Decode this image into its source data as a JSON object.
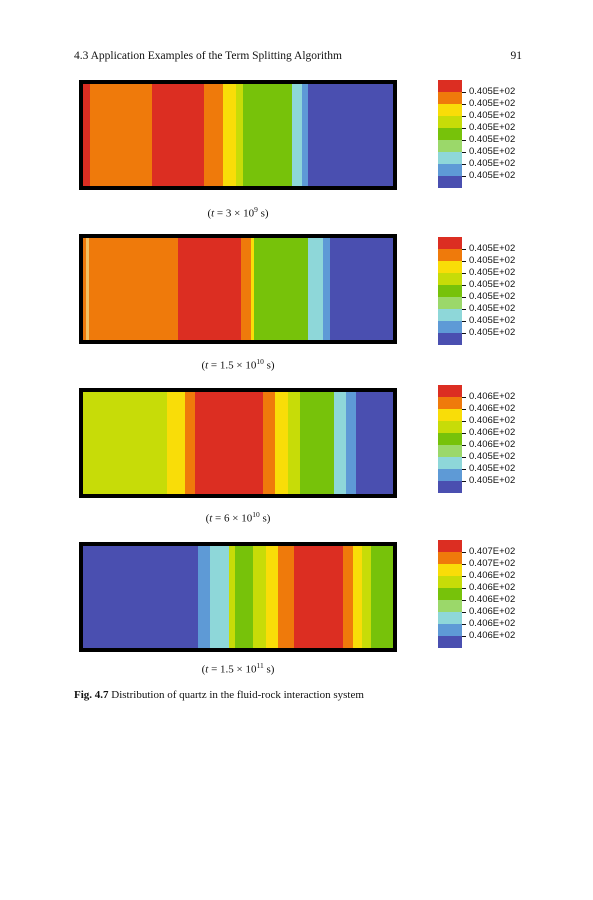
{
  "header": {
    "section": "4.3   Application Examples of the Term Splitting Algorithm",
    "page_number": "91"
  },
  "palette": {
    "red": "#dc2e22",
    "orange": "#ef7a0b",
    "yellow": "#f9dd08",
    "yellowgreen": "#c7dc08",
    "green": "#77c20a",
    "lightgreen": "#9bd86a",
    "cyan": "#8ed7d9",
    "lightblue": "#5e9ad6",
    "blue": "#4a4fb0",
    "highlight": "#f5c060"
  },
  "panels": [
    {
      "caption": {
        "pre": "(",
        "t": "t",
        "mid": " = 3 × 10",
        "exp": "9",
        "post": " s)",
        "unit": "s"
      },
      "bands": [
        {
          "color": "red",
          "w": 2
        },
        {
          "color": "orange",
          "w": 19
        },
        {
          "color": "red",
          "w": 16
        },
        {
          "color": "orange",
          "w": 6
        },
        {
          "color": "yellow",
          "w": 4
        },
        {
          "color": "yellowgreen",
          "w": 2
        },
        {
          "color": "green",
          "w": 15
        },
        {
          "color": "cyan",
          "w": 3
        },
        {
          "color": "lightblue",
          "w": 2
        },
        {
          "color": "blue",
          "w": 26
        }
      ],
      "colorbar_labels": [
        "0.405E+02",
        "0.405E+02",
        "0.405E+02",
        "0.405E+02",
        "0.405E+02",
        "0.405E+02",
        "0.405E+02",
        "0.405E+02"
      ]
    },
    {
      "caption": {
        "pre": "(",
        "t": "t",
        "mid": " = 1.5 × 10",
        "exp": "10",
        "post": " s)",
        "unit": "s"
      },
      "bands": [
        {
          "color": "orange",
          "w": 1
        },
        {
          "color": "highlight",
          "w": 1
        },
        {
          "color": "orange",
          "w": 28
        },
        {
          "color": "red",
          "w": 20
        },
        {
          "color": "orange",
          "w": 3
        },
        {
          "color": "yellow",
          "w": 1
        },
        {
          "color": "green",
          "w": 17
        },
        {
          "color": "cyan",
          "w": 5
        },
        {
          "color": "lightblue",
          "w": 2
        },
        {
          "color": "blue",
          "w": 20
        }
      ],
      "colorbar_labels": [
        "0.405E+02",
        "0.405E+02",
        "0.405E+02",
        "0.405E+02",
        "0.405E+02",
        "0.405E+02",
        "0.405E+02",
        "0.405E+02"
      ]
    },
    {
      "caption": {
        "pre": "(",
        "t": "t",
        "mid": " = 6 × 10",
        "exp": "10",
        "post": " s)",
        "unit": "s"
      },
      "bands": [
        {
          "color": "yellowgreen",
          "w": 27
        },
        {
          "color": "yellow",
          "w": 6
        },
        {
          "color": "orange",
          "w": 3
        },
        {
          "color": "red",
          "w": 22
        },
        {
          "color": "orange",
          "w": 4
        },
        {
          "color": "yellow",
          "w": 4
        },
        {
          "color": "yellowgreen",
          "w": 4
        },
        {
          "color": "green",
          "w": 11
        },
        {
          "color": "cyan",
          "w": 4
        },
        {
          "color": "lightblue",
          "w": 3
        },
        {
          "color": "blue",
          "w": 12
        }
      ],
      "colorbar_labels": [
        "0.406E+02",
        "0.406E+02",
        "0.406E+02",
        "0.406E+02",
        "0.406E+02",
        "0.405E+02",
        "0.405E+02",
        "0.405E+02"
      ]
    },
    {
      "caption": {
        "pre": "(",
        "t": "t",
        "mid": " = 1.5 × 10",
        "exp": "11",
        "post": " s)",
        "unit": "s"
      },
      "bands": [
        {
          "color": "blue",
          "w": 37
        },
        {
          "color": "lightblue",
          "w": 4
        },
        {
          "color": "cyan",
          "w": 6
        },
        {
          "color": "yellowgreen",
          "w": 2
        },
        {
          "color": "green",
          "w": 6
        },
        {
          "color": "yellowgreen",
          "w": 4
        },
        {
          "color": "yellow",
          "w": 4
        },
        {
          "color": "orange",
          "w": 5
        },
        {
          "color": "red",
          "w": 16
        },
        {
          "color": "orange",
          "w": 3
        },
        {
          "color": "yellow",
          "w": 3
        },
        {
          "color": "yellowgreen",
          "w": 3
        },
        {
          "color": "green",
          "w": 7
        }
      ],
      "colorbar_labels": [
        "0.407E+02",
        "0.407E+02",
        "0.406E+02",
        "0.406E+02",
        "0.406E+02",
        "0.406E+02",
        "0.406E+02",
        "0.406E+02"
      ]
    }
  ],
  "colorbar_swatches": [
    "red",
    "orange",
    "yellow",
    "yellowgreen",
    "green",
    "lightgreen",
    "cyan",
    "lightblue",
    "blue"
  ],
  "figure_caption": {
    "label": "Fig. 4.7",
    "text": "  Distribution of quartz in the fluid-rock interaction system"
  }
}
